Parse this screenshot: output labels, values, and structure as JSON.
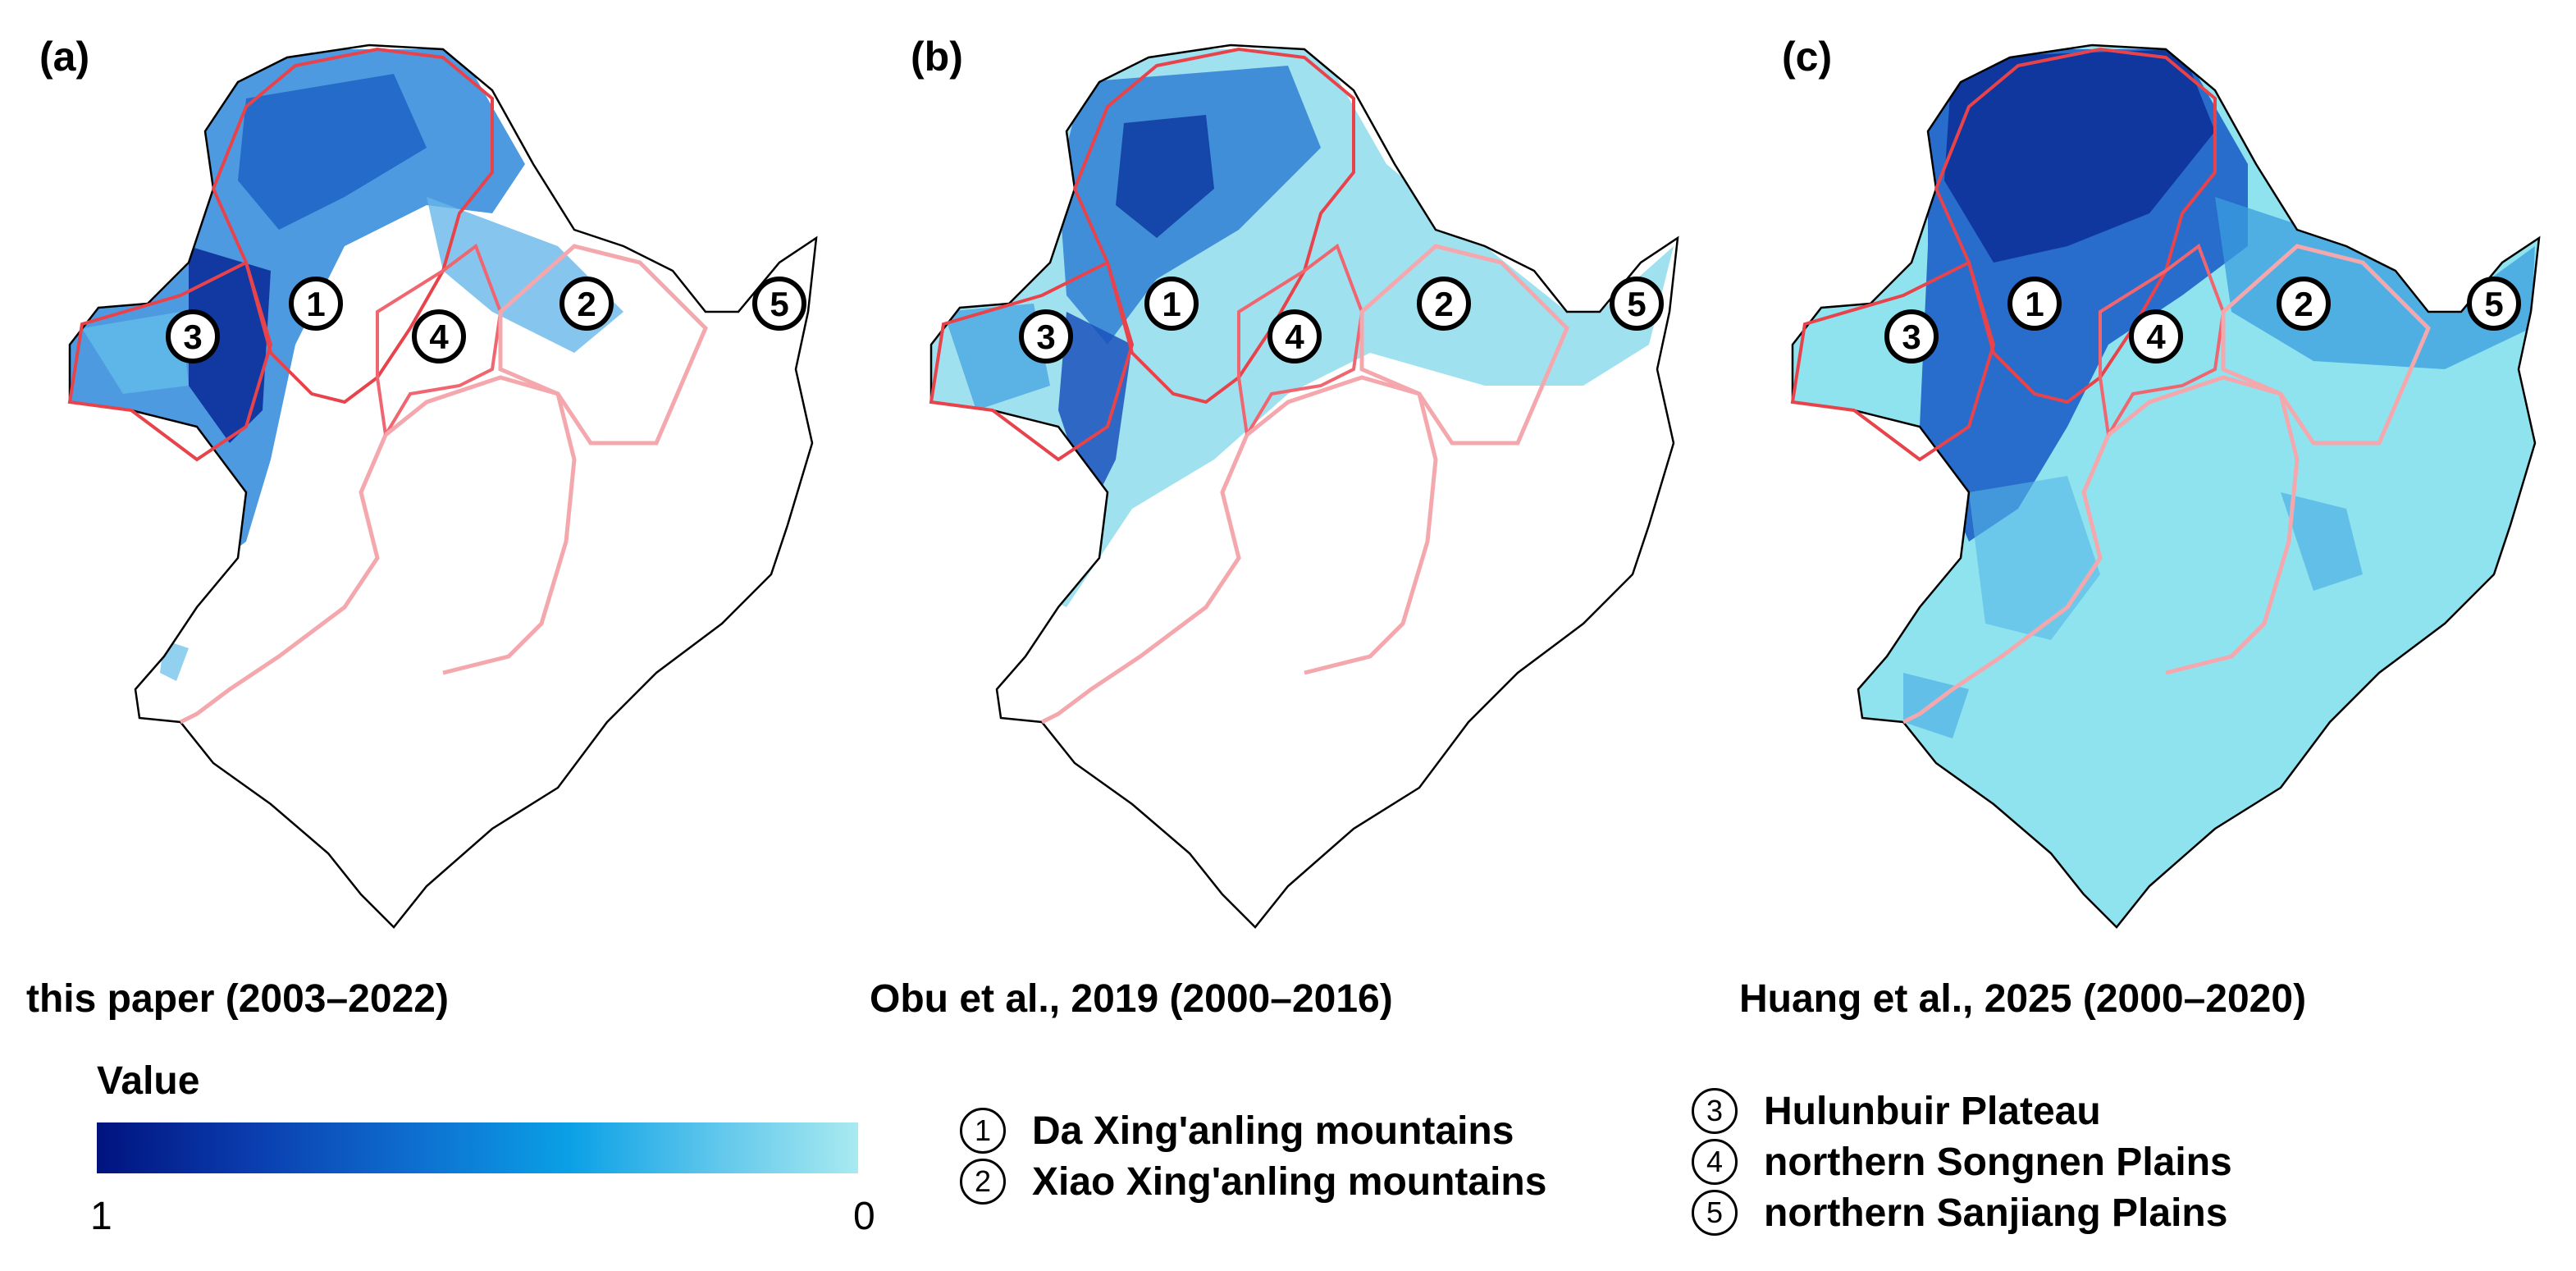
{
  "panels": [
    {
      "id": "a",
      "label": "(a)",
      "caption": "this paper (2003–2022)"
    },
    {
      "id": "b",
      "label": "(b)",
      "caption": "Obu et al., 2019 (2000–2016)"
    },
    {
      "id": "c",
      "label": "(c)",
      "caption": "Huang et al., 2025 (2000–2020)"
    }
  ],
  "legend": {
    "title": "Value",
    "max_label": "1",
    "min_label": "0",
    "colors": [
      "#00137e",
      "#0e6fd0",
      "#0aa0e6",
      "#a8eaf0"
    ]
  },
  "regions": [
    {
      "num": "①",
      "name": "Da Xing'anling mountains"
    },
    {
      "num": "②",
      "name": "Xiao Xing'anling mountains"
    },
    {
      "num": "③",
      "name": "Hulunbuir Plateau"
    },
    {
      "num": "④",
      "name": "northern Songnen Plains"
    },
    {
      "num": "⑤",
      "name": "northern Sanjiang Plains"
    }
  ],
  "colors": {
    "boundary": "#000000",
    "subregion_strong": "#e8434b",
    "subregion_light": "#f4a8ad",
    "low": "#a8eaf0",
    "high": "#00137e"
  }
}
